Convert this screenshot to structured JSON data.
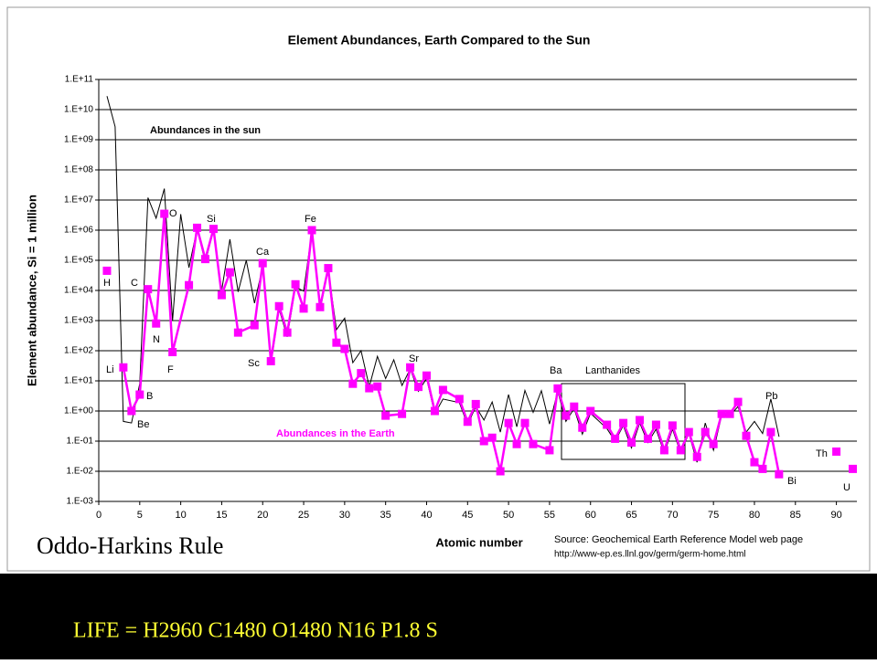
{
  "chart_data": {
    "type": "line",
    "title": "Element Abundances, Earth Compared to the Sun",
    "xlabel": "Atomic number",
    "ylabel": "Element abundance, Si = 1 million",
    "log_y": true,
    "grid": true,
    "xlim": [
      0,
      92.5
    ],
    "xticks": [
      0,
      5,
      10,
      15,
      20,
      25,
      30,
      35,
      40,
      45,
      50,
      55,
      60,
      65,
      70,
      75,
      80,
      85,
      90
    ],
    "ylim": [
      0.001,
      100000000000
    ],
    "yticks": [
      {
        "value": 0.001,
        "label": "1.E-03"
      },
      {
        "value": 0.01,
        "label": "1.E-02"
      },
      {
        "value": 0.1,
        "label": "1.E-01"
      },
      {
        "value": 1,
        "label": "1.E+00"
      },
      {
        "value": 10,
        "label": "1.E+01"
      },
      {
        "value": 100,
        "label": "1.E+02"
      },
      {
        "value": 1000,
        "label": "1.E+03"
      },
      {
        "value": 10000,
        "label": "1.E+04"
      },
      {
        "value": 100000,
        "label": "1.E+05"
      },
      {
        "value": 1000000,
        "label": "1.E+06"
      },
      {
        "value": 10000000,
        "label": "1.E+07"
      },
      {
        "value": 100000000,
        "label": "1.E+08"
      },
      {
        "value": 1000000000,
        "label": "1.E+09"
      },
      {
        "value": 10000000000,
        "label": "1.E+10"
      },
      {
        "value": 100000000000,
        "label": "1.E+11"
      }
    ],
    "series": [
      {
        "name": "Abundances in the sun",
        "color": "#000000",
        "marker": false,
        "x": [
          1,
          2,
          3,
          4,
          5,
          6,
          7,
          8,
          9,
          10,
          11,
          12,
          13,
          14,
          15,
          16,
          17,
          18,
          19,
          20,
          21,
          22,
          23,
          24,
          25,
          26,
          27,
          28,
          29,
          30,
          31,
          32,
          33,
          34,
          35,
          36,
          37,
          38,
          39,
          40,
          41,
          42,
          44,
          45,
          46,
          47,
          48,
          49,
          50,
          51,
          52,
          53,
          54,
          55,
          56,
          57,
          58,
          59,
          60,
          62,
          63,
          64,
          65,
          66,
          67,
          68,
          69,
          70,
          71,
          72,
          73,
          74,
          75,
          76,
          77,
          78,
          79,
          80,
          81,
          82,
          83
        ],
        "values": [
          28000000000.0,
          2700000000.0,
          0.45,
          0.4,
          8,
          12000000.0,
          2500000.0,
          24000000.0,
          1000,
          3400000.0,
          57000,
          1100000.0,
          85000,
          1000000.0,
          10000,
          500000,
          9000,
          100000,
          3800,
          60000,
          35,
          2400,
          290,
          13000,
          9500,
          900000,
          2200,
          50000,
          500,
          1200,
          40,
          100,
          6.5,
          65,
          12,
          50,
          7,
          25,
          4.5,
          12,
          0.8,
          2.5,
          1.9,
          0.35,
          1.4,
          0.5,
          2,
          0.2,
          3.5,
          0.3,
          4.8,
          0.9,
          4.7,
          0.37,
          4.5,
          0.45,
          1.2,
          0.17,
          0.84,
          0.26,
          0.1,
          0.33,
          0.06,
          0.4,
          0.09,
          0.25,
          0.04,
          0.25,
          0.04,
          0.18,
          0.02,
          0.4,
          0.05,
          0.7,
          0.7,
          1.4,
          0.2,
          0.45,
          0.18,
          2.5,
          0.14
        ]
      },
      {
        "name": "Abundances in the Earth",
        "color": "#ff00ff",
        "marker": true,
        "x": [
          1,
          2,
          3,
          4,
          5,
          6,
          7,
          8,
          9,
          11,
          12,
          13,
          14,
          15,
          16,
          17,
          19,
          20,
          21,
          22,
          23,
          24,
          25,
          26,
          27,
          28,
          29,
          30,
          31,
          32,
          33,
          34,
          35,
          37,
          38,
          39,
          40,
          41,
          42,
          44,
          45,
          46,
          47,
          48,
          49,
          50,
          51,
          52,
          53,
          55,
          56,
          57,
          58,
          59,
          60,
          62,
          63,
          64,
          65,
          66,
          67,
          68,
          69,
          70,
          71,
          72,
          73,
          74,
          75,
          76,
          77,
          78,
          79,
          80,
          81,
          82,
          83,
          84,
          90,
          91,
          92
        ],
        "values": [
          45000,
          null,
          28,
          1,
          3.5,
          11000,
          800,
          3500000,
          90,
          15000,
          1200000,
          110000,
          1100000,
          7000,
          40000,
          400,
          700,
          80000,
          45,
          3000,
          400,
          16000,
          2500,
          1000000,
          2800,
          55000,
          185,
          115,
          8,
          18,
          5.7,
          6.5,
          0.7,
          0.8,
          28,
          6.3,
          15,
          1,
          5,
          2.5,
          0.44,
          1.7,
          0.1,
          0.13,
          0.01,
          0.4,
          0.08,
          0.4,
          0.08,
          0.05,
          5.6,
          0.7,
          1.4,
          0.28,
          1,
          0.35,
          0.12,
          0.4,
          0.09,
          0.5,
          0.12,
          0.35,
          0.05,
          0.33,
          0.05,
          0.2,
          0.03,
          0.2,
          0.08,
          0.8,
          0.8,
          2,
          0.15,
          0.02,
          0.012,
          0.2,
          0.008,
          null,
          0.045,
          null,
          0.012
        ]
      }
    ],
    "annotations": [
      "H",
      "Li",
      "Be",
      "B",
      "C",
      "N",
      "O",
      "F",
      "Si",
      "Ca",
      "Sc",
      "Fe",
      "Sr",
      "Ba",
      "Lanthanides",
      "Pb",
      "Bi",
      "Th",
      "U"
    ],
    "source": [
      "Source:  Geochemical Earth Reference Model web page",
      "http://www-ep.es.llnl.gov/germ/germ-home.html"
    ]
  },
  "caption": "Oddo-Harkins Rule",
  "footer": "LIFE = H2960 C1480 O1480 N16 P1.8 S"
}
